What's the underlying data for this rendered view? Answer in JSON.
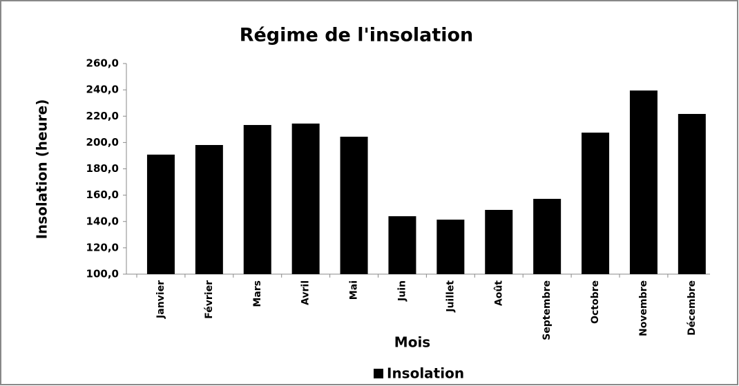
{
  "chart_data": {
    "type": "bar",
    "title": "Régime de l'insolation",
    "x_label": "Mois",
    "y_label": "Insolation (heure)",
    "categories": [
      "Janvier",
      "Février",
      "Mars",
      "Avril",
      "Mai",
      "Juin",
      "Juillet",
      "Août",
      "Septembre",
      "Octobre",
      "Novembre",
      "Décembre"
    ],
    "series": [
      {
        "name": "Insolation",
        "color": "#000000",
        "values": [
          190.8,
          198.1,
          213.3,
          214.4,
          204.4,
          144.0,
          141.4,
          148.8,
          157.2,
          207.5,
          239.5,
          221.7
        ]
      }
    ],
    "ylim": [
      100,
      260
    ],
    "yticks": [
      {
        "value": 100,
        "label": "100,0"
      },
      {
        "value": 120,
        "label": "120,0"
      },
      {
        "value": 140,
        "label": "140,0"
      },
      {
        "value": 160,
        "label": "160,0"
      },
      {
        "value": 180,
        "label": "180,0"
      },
      {
        "value": 200,
        "label": "200,0"
      },
      {
        "value": 220,
        "label": "220,0"
      },
      {
        "value": 240,
        "label": "240,0"
      },
      {
        "value": 260,
        "label": "260,0"
      }
    ],
    "legend": "bottom",
    "grid": false
  }
}
